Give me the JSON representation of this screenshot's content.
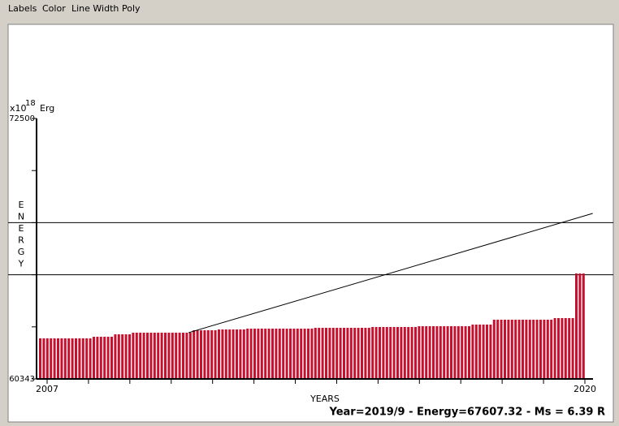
{
  "menu": [
    "Labels",
    "Color",
    "Line Width",
    "Poly"
  ],
  "status": "Year=2019/9 - Energy=67607.32 - Ms = 6.39 R",
  "chart_data": {
    "type": "bar",
    "unit_label": "x10",
    "unit_exponent": "18",
    "unit_name": "Erg",
    "y_label": "ENERGY",
    "x_label": "YEARS",
    "color": "#c8102e",
    "ylim": [
      60343,
      72500
    ],
    "yticks": [
      60343,
      72500
    ],
    "y_minor_ticks": [
      62774.4,
      65205.8,
      67637.2,
      70068.6
    ],
    "hlines": [
      65205.8,
      67637.2
    ],
    "xlim": [
      2007,
      2020
    ],
    "xticks": [
      2007,
      2020
    ],
    "x_minor_ticks": [
      2008,
      2009,
      2010,
      2011,
      2012,
      2013,
      2014,
      2015,
      2016,
      2017,
      2018,
      2019
    ],
    "values": [
      62237,
      62237,
      62237,
      62237,
      62237,
      62237,
      62237,
      62237,
      62237,
      62237,
      62237,
      62237,
      62237,
      62237,
      62237,
      62312,
      62312,
      62312,
      62312,
      62312,
      62312,
      62426,
      62426,
      62426,
      62426,
      62426,
      62502,
      62502,
      62502,
      62502,
      62502,
      62502,
      62502,
      62502,
      62502,
      62502,
      62502,
      62502,
      62502,
      62502,
      62502,
      62502,
      62502,
      62615,
      62615,
      62615,
      62615,
      62615,
      62615,
      62615,
      62653,
      62653,
      62653,
      62653,
      62653,
      62653,
      62653,
      62653,
      62691,
      62691,
      62691,
      62691,
      62691,
      62691,
      62691,
      62691,
      62691,
      62691,
      62691,
      62691,
      62691,
      62691,
      62691,
      62691,
      62691,
      62691,
      62691,
      62729,
      62729,
      62729,
      62729,
      62729,
      62729,
      62729,
      62729,
      62729,
      62729,
      62729,
      62729,
      62729,
      62729,
      62729,
      62729,
      62767,
      62767,
      62767,
      62767,
      62767,
      62767,
      62767,
      62767,
      62767,
      62767,
      62767,
      62767,
      62767,
      62805,
      62805,
      62805,
      62805,
      62805,
      62805,
      62805,
      62805,
      62805,
      62805,
      62805,
      62805,
      62805,
      62805,
      62805,
      62880,
      62880,
      62880,
      62880,
      62880,
      62880,
      63108,
      63108,
      63108,
      63108,
      63108,
      63108,
      63108,
      63108,
      63108,
      63108,
      63108,
      63108,
      63108,
      63108,
      63108,
      63108,
      63108,
      63183,
      63183,
      63183,
      63183,
      63183,
      63183,
      65266,
      65266,
      65266
    ],
    "trend_line": {
      "x": [
        2010.42,
        2020.19
      ],
      "values": [
        62502,
        68068
      ]
    }
  }
}
